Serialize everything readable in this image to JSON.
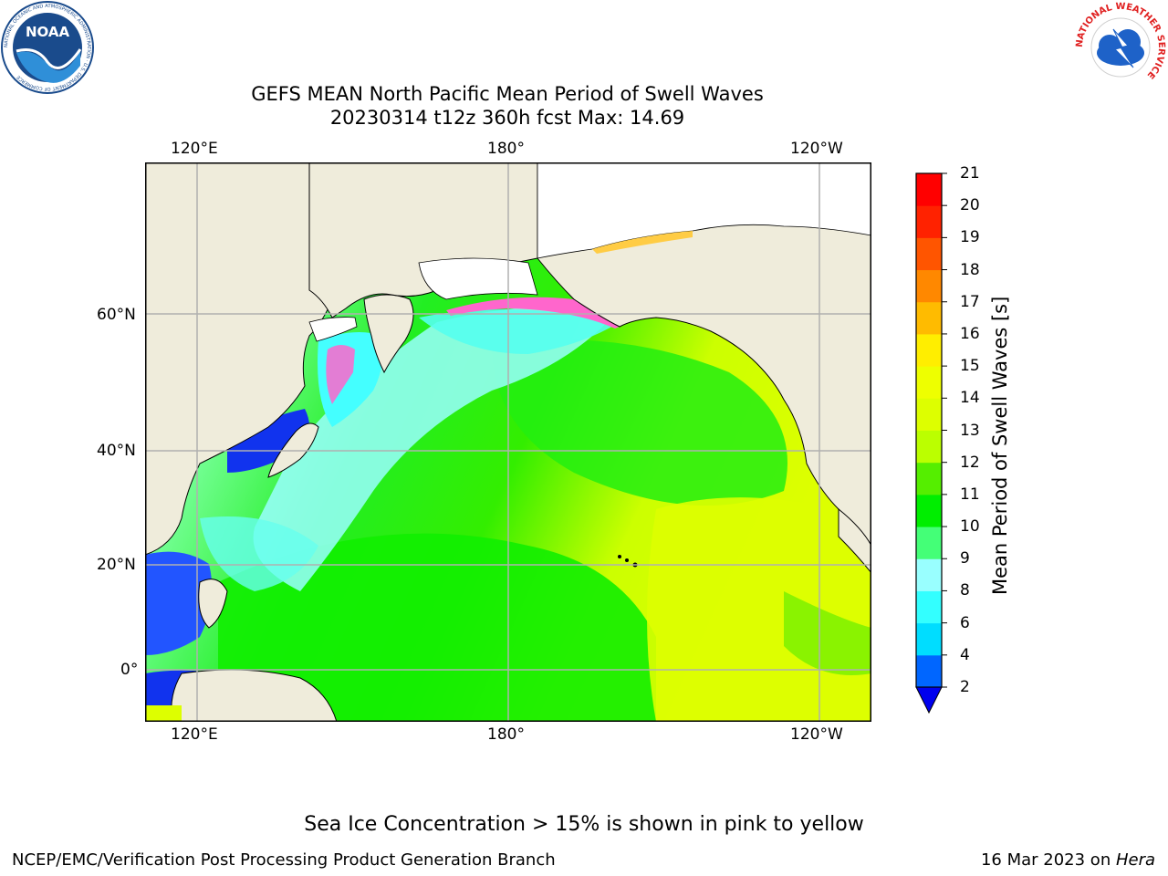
{
  "logos": {
    "noaa": {
      "text": "NOAA",
      "ring_text": "NATIONAL OCEANIC AND ATMOSPHERIC ADMINISTRATION · U.S. DEPARTMENT OF COMMERCE"
    },
    "nws": {
      "ring_text": "NATIONAL WEATHER SERVICE"
    }
  },
  "title": {
    "line1": "GEFS MEAN North Pacific Mean Period of Swell Waves",
    "line2": "20230314 t12z 360h fcst   Max: 14.69"
  },
  "map": {
    "lon_ticks_top": [
      "120°E",
      "180°",
      "120°W"
    ],
    "lon_ticks_bottom": [
      "120°E",
      "180°",
      "120°W"
    ],
    "lat_ticks": [
      "60°N",
      "40°N",
      "20°N",
      "0°"
    ],
    "colors": {
      "land": "#efecdb",
      "ice": "#ffffff",
      "gridline": "#b0b0b0",
      "coast": "#000000"
    }
  },
  "colorbar": {
    "label": "Mean Period of Swell Waves [s]",
    "ticks": [
      "2",
      "4",
      "6",
      "8",
      "9",
      "10",
      "11",
      "12",
      "13",
      "14",
      "15",
      "16",
      "17",
      "18",
      "19",
      "20",
      "21"
    ],
    "colors": [
      "#0066ff",
      "#00ddff",
      "#33ffff",
      "#99ffff",
      "#44ff77",
      "#00ee00",
      "#55ee00",
      "#bbff00",
      "#ddff00",
      "#eeff00",
      "#ffee00",
      "#ffbb00",
      "#ff8800",
      "#ff5500",
      "#ff2200",
      "#ff0000"
    ],
    "extend_below_color": "#0000ee"
  },
  "note": "Sea Ice Concentration > 15% is shown in pink to yellow",
  "footer": {
    "left": "NCEP/EMC/Verification Post Processing Product Generation Branch",
    "right_date": "16 Mar 2023 on ",
    "right_machine": "Hera"
  }
}
